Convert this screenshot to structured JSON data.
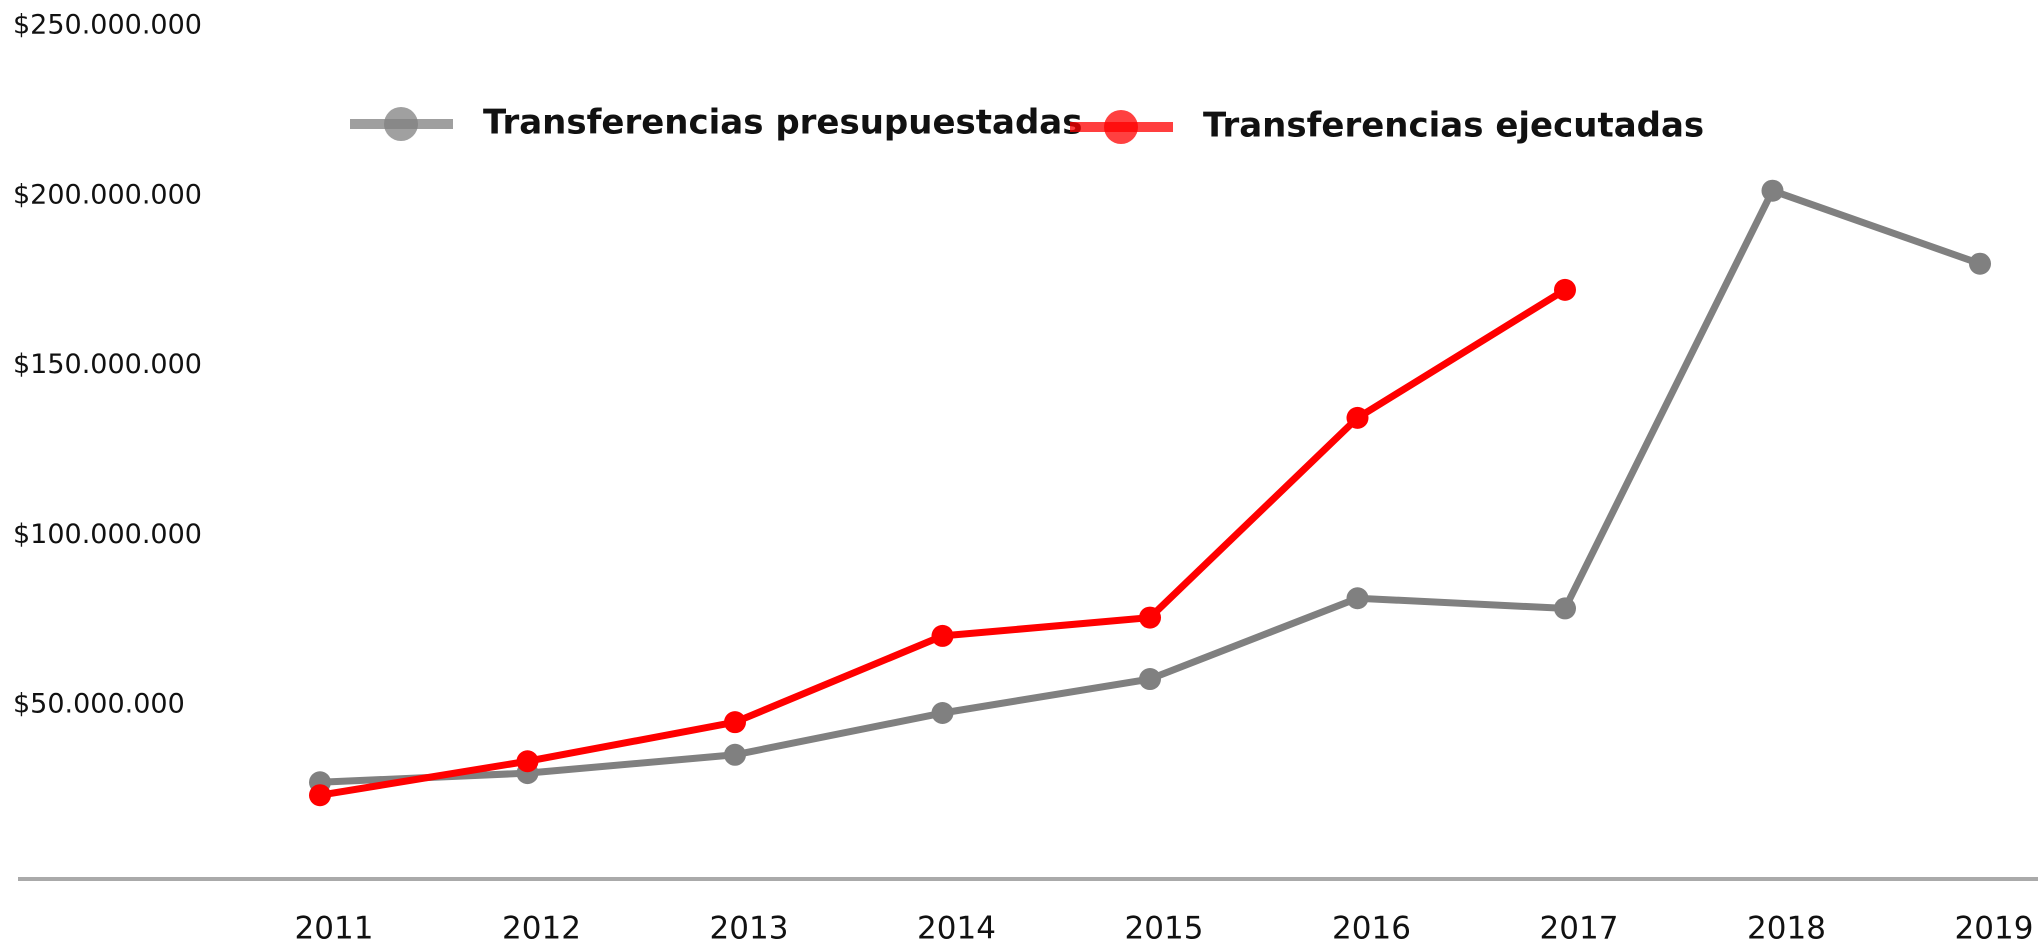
{
  "chart_data": {
    "type": "line",
    "categories": [
      "2011",
      "2012",
      "2013",
      "2014",
      "2015",
      "2016",
      "2017",
      "2018",
      "2019"
    ],
    "series": [
      {
        "name": "Transferencias presupuestadas",
        "color": "#808080",
        "values": [
          27300000,
          30000000,
          35400000,
          47700000,
          57700000,
          81500000,
          78500000,
          201500000,
          180000000
        ]
      },
      {
        "name": "Transferencias ejecutadas",
        "color": "#ff0000",
        "values": [
          23500000,
          33500000,
          45000000,
          70400000,
          75800000,
          134600000,
          172300000,
          null,
          null
        ]
      }
    ],
    "ylim": [
      0,
      250000000
    ],
    "yticks": [
      {
        "value": 50000000,
        "label": "$50.000.000"
      },
      {
        "value": 100000000,
        "label": "$100.000.000"
      },
      {
        "value": 150000000,
        "label": "$150.000.000"
      },
      {
        "value": 200000000,
        "label": "$200.000.000"
      },
      {
        "value": 250000000,
        "label": "$250.000.000"
      }
    ],
    "grid": false
  }
}
